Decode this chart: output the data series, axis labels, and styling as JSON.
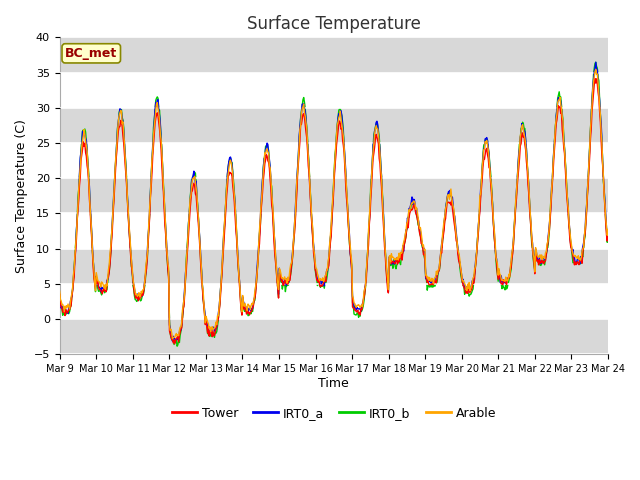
{
  "title": "Surface Temperature",
  "xlabel": "Time",
  "ylabel": "Surface Temperature (C)",
  "ylim": [
    -5,
    40
  ],
  "yticks": [
    -5,
    0,
    5,
    10,
    15,
    20,
    25,
    30,
    35,
    40
  ],
  "annotation": "BC_met",
  "series_colors": {
    "Tower": "#FF0000",
    "IRT0_a": "#0000EE",
    "IRT0_b": "#00CC00",
    "Arable": "#FFA500"
  },
  "fig_bg": "#FFFFFF",
  "plot_bg": "#FFFFFF",
  "linewidth": 1.0,
  "n_days": 15,
  "start_day": 9,
  "day_amplitudes": [
    24,
    24,
    26,
    22,
    23,
    22,
    24,
    23,
    25,
    8,
    12,
    20,
    21,
    22,
    26,
    26
  ],
  "day_minimums": [
    1,
    4,
    3,
    -3,
    -2,
    1,
    5,
    5,
    1,
    8,
    5,
    4,
    5,
    8,
    8,
    10
  ]
}
